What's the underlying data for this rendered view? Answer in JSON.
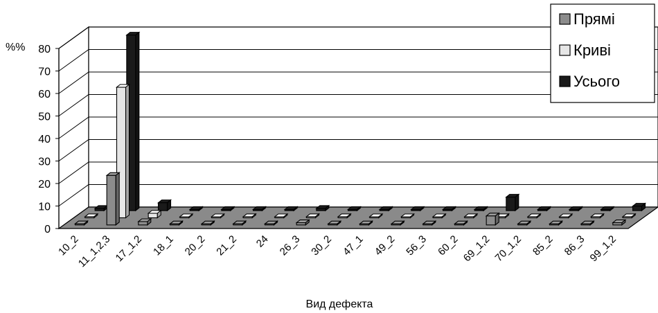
{
  "chart_data": {
    "type": "bar",
    "title": "",
    "xlabel": "Вид дефекта",
    "ylabel": "%%",
    "ylim": [
      0,
      80
    ],
    "yticks": [
      0,
      10,
      20,
      30,
      40,
      50,
      60,
      70,
      80
    ],
    "grid": true,
    "legend_position": "top-right",
    "categories": [
      "10_2",
      "11_1,2,3",
      "17_1,2",
      "18_1",
      "20_2",
      "21_2",
      "24",
      "26_3",
      "30_2",
      "47_1",
      "49_2",
      "56_3",
      "60_2",
      "69_1,2",
      "70_1,2",
      "85_2",
      "86_3",
      "99_1,2"
    ],
    "series": [
      {
        "name": "Прямі",
        "color": "#8c8c8c",
        "values": [
          0.5,
          22,
          1.5,
          0,
          0,
          0.5,
          0,
          1,
          0,
          0,
          0,
          0,
          0,
          4,
          0,
          0,
          0,
          1
        ]
      },
      {
        "name": "Криві",
        "color": "#e6e6e6",
        "values": [
          0.5,
          58,
          2,
          0,
          0,
          0.5,
          0,
          0.5,
          0.5,
          0,
          0,
          0,
          0.5,
          0.5,
          0.5,
          0,
          0.5,
          0.5
        ]
      },
      {
        "name": "Усього",
        "color": "#1a1a1a",
        "values": [
          1,
          78,
          3.5,
          0.5,
          0.5,
          0.5,
          0.5,
          1,
          0.5,
          0.5,
          0.5,
          0.5,
          0.5,
          6,
          0.5,
          0.5,
          0.5,
          2
        ]
      }
    ]
  }
}
